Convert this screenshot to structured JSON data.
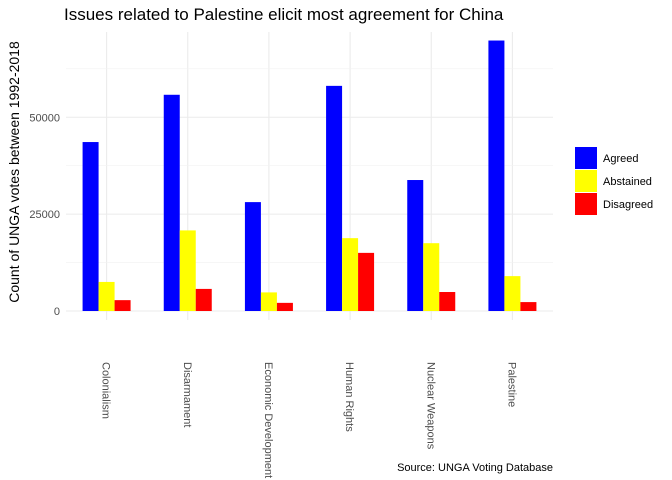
{
  "chart_data": {
    "type": "bar",
    "title": "Issues related to Palestine elicit most agreement for China",
    "ylabel": "Count of UNGA votes between 1992-2018",
    "xlabel": "",
    "caption": "Source: UNGA Voting Database",
    "categories": [
      "Colonialism",
      "Disarmament",
      "Economic Development",
      "Human Rights",
      "Nuclear Weapons",
      "Palestine"
    ],
    "series": [
      {
        "name": "Agreed",
        "color": "#0000ff",
        "values": [
          43600,
          55800,
          28100,
          58100,
          33800,
          69800
        ]
      },
      {
        "name": "Abstained",
        "color": "#ffff00",
        "values": [
          7500,
          20800,
          4800,
          18800,
          17500,
          9000
        ]
      },
      {
        "name": "Disagreed",
        "color": "#ff0000",
        "values": [
          2800,
          5700,
          2100,
          15000,
          4900,
          2300
        ]
      }
    ],
    "ylim": [
      0,
      72000
    ],
    "yticks": [
      0,
      25000,
      50000
    ],
    "ytick_labels": [
      "0",
      "25000",
      "50000"
    ],
    "grid": true,
    "legend_position": "right",
    "x_tick_rotation": "90"
  }
}
